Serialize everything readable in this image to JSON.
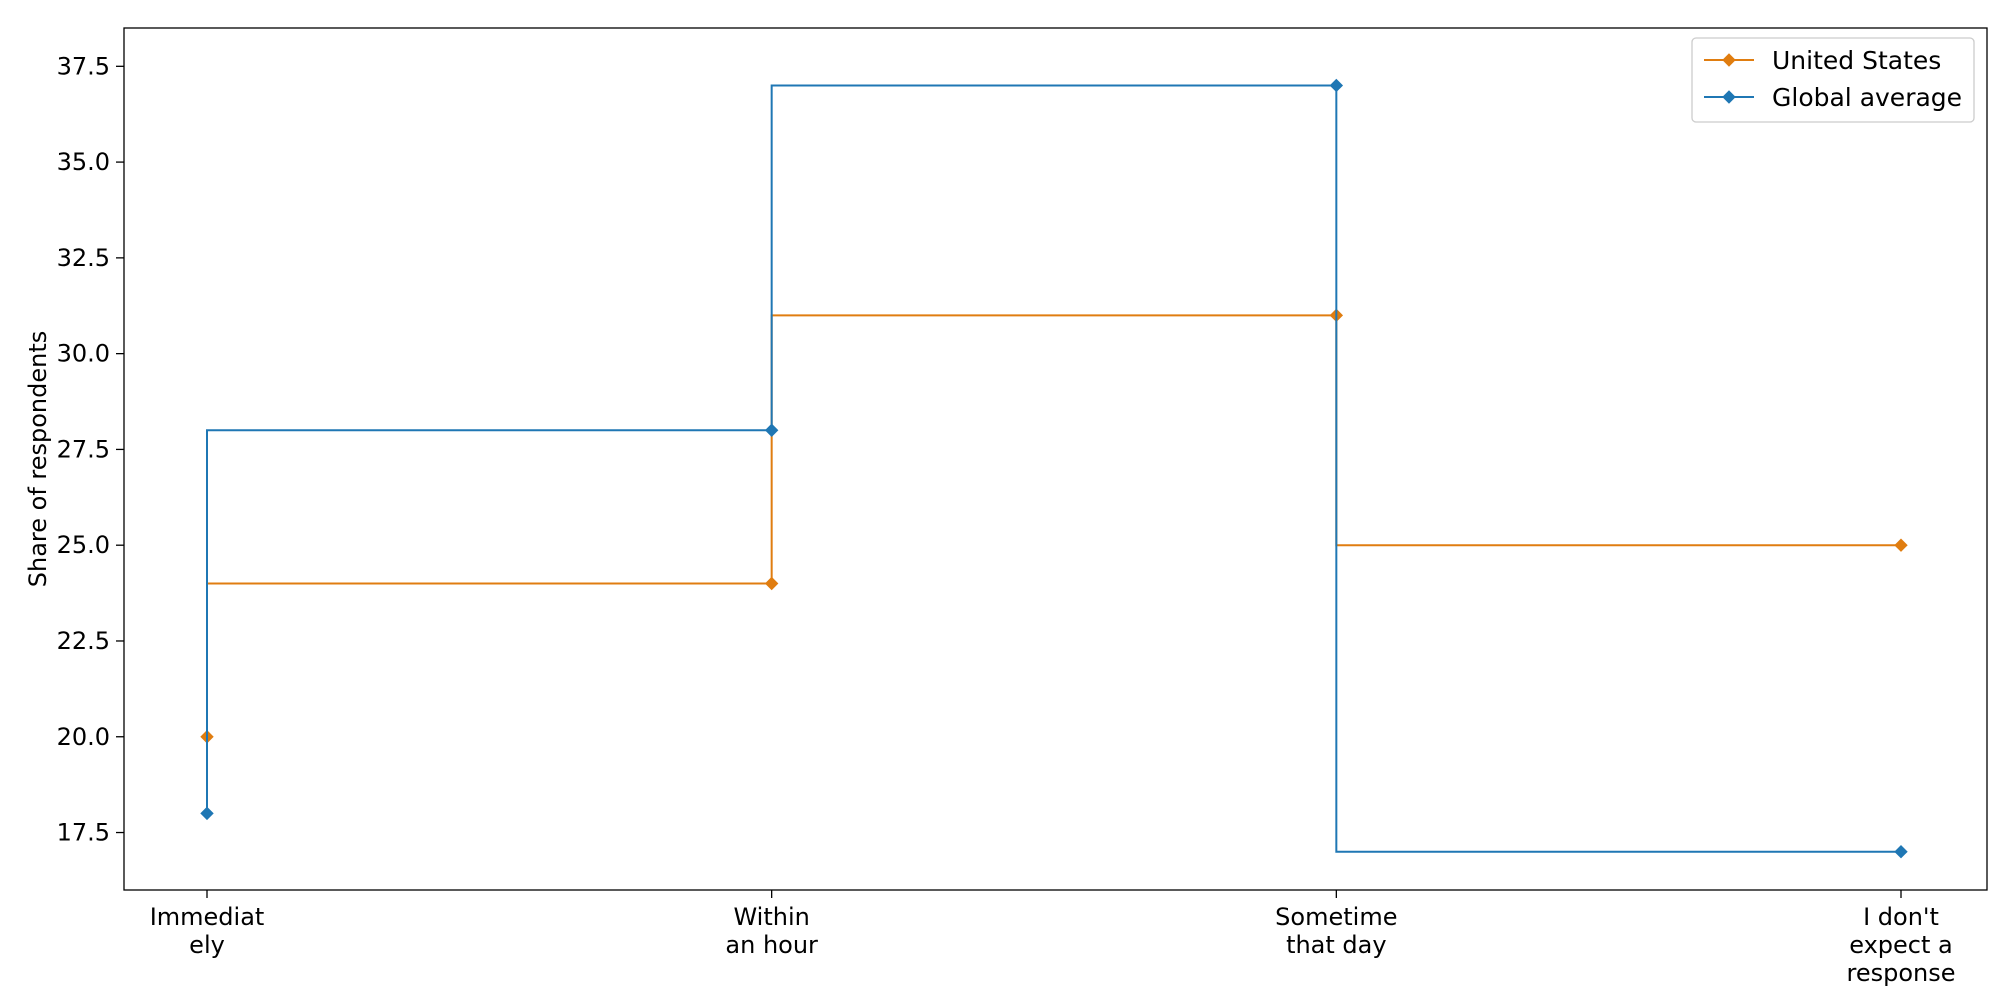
{
  "chart_data": {
    "type": "line",
    "step": "post",
    "categories": [
      [
        "Immediat",
        "ely"
      ],
      [
        "Within",
        "an hour"
      ],
      [
        "Sometime",
        "that day"
      ],
      [
        "I don't",
        "expect a",
        "response"
      ]
    ],
    "ylabel": "Share of respondents",
    "ylim": [
      16,
      38.5
    ],
    "yticks": [
      "17.5",
      "20.0",
      "22.5",
      "25.0",
      "27.5",
      "30.0",
      "32.5",
      "35.0",
      "37.5"
    ],
    "grid": false,
    "legend_position": "top-right",
    "series": [
      {
        "name": "United States",
        "values": [
          20,
          24,
          31,
          25
        ],
        "color": "#e07d10",
        "marker": "diamond"
      },
      {
        "name": "Global average",
        "values": [
          18,
          28,
          37,
          17
        ],
        "color": "#1f77b4",
        "marker": "diamond"
      }
    ]
  }
}
